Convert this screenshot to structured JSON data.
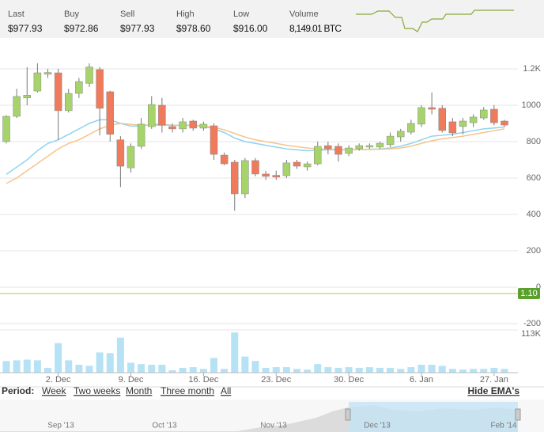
{
  "header": {
    "stats": [
      {
        "label": "Last",
        "value": "$977.93"
      },
      {
        "label": "Buy",
        "value": "$972.86"
      },
      {
        "label": "Sell",
        "value": "$977.93"
      },
      {
        "label": "High",
        "value": "$978.60"
      },
      {
        "label": "Low",
        "value": "$916.00"
      },
      {
        "label": "Volume",
        "value": "8,149.01 BTC"
      }
    ]
  },
  "chart_data": {
    "type": "candlestick",
    "categories": [
      null,
      null,
      null,
      null,
      null,
      "2. Dec",
      null,
      null,
      null,
      null,
      null,
      null,
      "9. Dec",
      null,
      null,
      null,
      null,
      null,
      null,
      "16. Dec",
      null,
      null,
      null,
      null,
      null,
      null,
      "23. Dec",
      null,
      null,
      null,
      null,
      null,
      null,
      "30. Dec",
      null,
      null,
      null,
      null,
      null,
      null,
      "6. Jan",
      null,
      null,
      null,
      null,
      null,
      null,
      "27. Jan",
      null
    ],
    "open": [
      800,
      939,
      1040,
      1078,
      1170,
      1178,
      970,
      1065,
      1120,
      1196,
      1074,
      810,
      656,
      774,
      882,
      1000,
      883,
      870,
      913,
      874,
      887,
      726,
      687,
      513,
      696,
      622,
      615,
      613,
      687,
      661,
      678,
      778,
      774,
      735,
      761,
      770,
      770,
      783,
      826,
      852,
      896,
      987,
      983,
      909,
      883,
      904,
      930,
      978,
      913
    ],
    "high": [
      945,
      1090,
      1209,
      1230,
      1200,
      1200,
      1090,
      1150,
      1230,
      1210,
      1080,
      830,
      790,
      930,
      1050,
      1040,
      900,
      930,
      920,
      910,
      900,
      740,
      700,
      710,
      710,
      640,
      640,
      700,
      700,
      690,
      800,
      800,
      790,
      780,
      790,
      790,
      800,
      850,
      870,
      920,
      1000,
      1070,
      1000,
      930,
      930,
      950,
      990,
      1000,
      920
    ],
    "low": [
      790,
      930,
      1000,
      1070,
      1150,
      810,
      960,
      1040,
      1100,
      835,
      800,
      550,
      630,
      760,
      870,
      850,
      850,
      850,
      860,
      860,
      700,
      670,
      420,
      490,
      610,
      590,
      590,
      600,
      650,
      640,
      670,
      730,
      690,
      720,
      750,
      760,
      760,
      770,
      800,
      840,
      880,
      950,
      850,
      830,
      840,
      880,
      920,
      890,
      880
    ],
    "close": [
      939,
      1048,
      1055,
      1178,
      1180,
      970,
      1065,
      1130,
      1210,
      983,
      840,
      665,
      774,
      896,
      1004,
      891,
      870,
      909,
      874,
      896,
      730,
      678,
      513,
      696,
      622,
      609,
      605,
      683,
      665,
      678,
      774,
      761,
      730,
      765,
      778,
      778,
      791,
      830,
      857,
      900,
      987,
      978,
      861,
      848,
      913,
      935,
      974,
      904,
      891
    ],
    "color_up": "#a6d46a",
    "color_down": "#f07a5c",
    "ylim": [
      -226,
      1339
    ],
    "yticks": [
      {
        "value": 1200,
        "label": "1.2K"
      },
      1000,
      800,
      600,
      400,
      200,
      0,
      -200
    ],
    "ema": [
      {
        "color": "#8fd3ef",
        "values": [
          620,
          660,
          700,
          750,
          790,
          810,
          840,
          870,
          900,
          920,
          920,
          900,
          885,
          885,
          895,
          895,
          890,
          890,
          890,
          885,
          870,
          850,
          820,
          800,
          790,
          780,
          770,
          760,
          755,
          750,
          752,
          755,
          755,
          755,
          756,
          758,
          760,
          765,
          775,
          790,
          810,
          830,
          835,
          840,
          850,
          860,
          870,
          875,
          880
        ]
      },
      {
        "color": "#f5c48a",
        "values": [
          570,
          600,
          640,
          680,
          720,
          760,
          790,
          810,
          840,
          870,
          890,
          900,
          895,
          890,
          890,
          890,
          890,
          888,
          888,
          885,
          878,
          865,
          845,
          825,
          810,
          800,
          790,
          780,
          772,
          765,
          760,
          758,
          757,
          756,
          756,
          757,
          758,
          760,
          765,
          775,
          790,
          805,
          815,
          822,
          830,
          840,
          850,
          860,
          870
        ]
      }
    ],
    "indicator": {
      "values": [
        1.1
      ],
      "value_labels": [
        "1.10"
      ],
      "color": "#d6d68c",
      "label_color": "#5aa02c"
    },
    "volume": {
      "color": "#b5e2f5",
      "ylim": [
        0,
        120000
      ],
      "yticks": [
        {
          "value": 113000,
          "label": "113K"
        }
      ],
      "values": [
        34000,
        36000,
        38000,
        36000,
        14000,
        86000,
        36000,
        23000,
        20000,
        59000,
        57000,
        102000,
        29000,
        25000,
        23000,
        23000,
        7000,
        14000,
        16000,
        11000,
        43000,
        11000,
        117000,
        47000,
        34000,
        14000,
        16000,
        16000,
        11000,
        9000,
        25000,
        16000,
        14000,
        16000,
        14000,
        16000,
        14000,
        14000,
        11000,
        16000,
        23000,
        23000,
        20000,
        11000,
        9000,
        11000,
        11000,
        14000,
        11000
      ]
    }
  },
  "period": {
    "label": "Period:",
    "options": [
      "Week",
      "Two weeks",
      "Month",
      "Three month",
      "All"
    ],
    "toggle": "Hide EMA's"
  },
  "navigator": {
    "labels": [
      "Sep '13",
      "Oct '13",
      "Nov '13",
      "Dec '13",
      "Feb '14"
    ]
  }
}
